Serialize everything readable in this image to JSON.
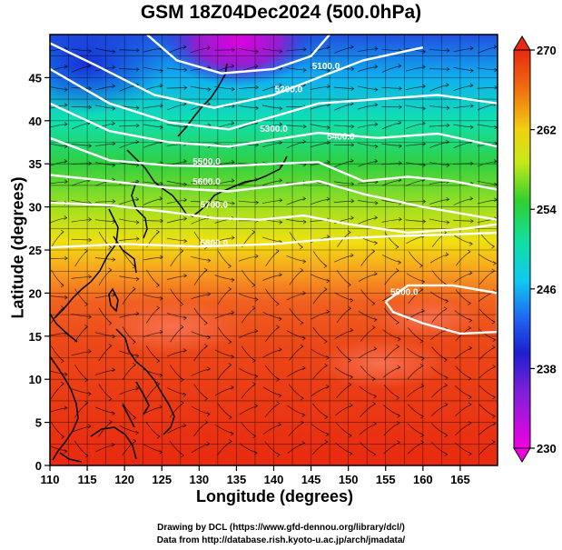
{
  "title": "GSM 18Z04Dec2024 (500.0hPa)",
  "xlabel": "Longitude (degrees)",
  "ylabel": "Latitude  (degrees)",
  "credits": {
    "line1": "Drawing by DCL (https://www.gfd-dennou.org/library/dcl/)",
    "line2": "Data from http://database.rish.kyoto-u.ac.jp/arch/jmadata/"
  },
  "chart_data": {
    "type": "heatmap",
    "variable": "temperature",
    "xlim": [
      110,
      170
    ],
    "ylim": [
      0,
      50
    ],
    "x_ticks": [
      "110",
      "115",
      "120",
      "125",
      "130",
      "135",
      "140",
      "145",
      "150",
      "155",
      "160",
      "165"
    ],
    "y_ticks": [
      "0",
      "5",
      "10",
      "15",
      "20",
      "25",
      "30",
      "35",
      "40",
      "45"
    ],
    "grid": true,
    "colorbar": {
      "min": 230,
      "max": 270,
      "ticks": [
        "230",
        "238",
        "246",
        "254",
        "262",
        "270"
      ],
      "colors": [
        "#e800e8",
        "#2020d8",
        "#10c8f0",
        "#20d040",
        "#e8e800",
        "#f08010",
        "#e83010"
      ]
    },
    "contour_labels": [
      "5100.0",
      "5200.0",
      "5300.0",
      "5400.0",
      "5500.0",
      "5600.0",
      "5700.0",
      "5800.0",
      "5900.0"
    ],
    "contour_lines": [
      {
        "level": "5100.0",
        "points": [
          [
            123,
            50
          ],
          [
            127,
            47
          ],
          [
            133,
            45.5
          ],
          [
            140,
            46
          ],
          [
            145,
            47.5
          ],
          [
            147.5,
            50
          ]
        ]
      },
      {
        "level": "5200.0",
        "points": [
          [
            110,
            49
          ],
          [
            116,
            46.5
          ],
          [
            124,
            43
          ],
          [
            132,
            41.5
          ],
          [
            140,
            43
          ],
          [
            146,
            45
          ],
          [
            152,
            47
          ],
          [
            160,
            48.5
          ]
        ]
      },
      {
        "level": "5300.0",
        "points": [
          [
            110,
            46
          ],
          [
            118,
            42
          ],
          [
            126,
            39.8
          ],
          [
            134,
            39
          ],
          [
            140,
            40.5
          ],
          [
            146,
            42
          ],
          [
            154,
            42.5
          ],
          [
            162,
            43
          ],
          [
            170,
            42
          ]
        ]
      },
      {
        "level": "5400.0",
        "points": [
          [
            110,
            42
          ],
          [
            118,
            38.8
          ],
          [
            126,
            37.5
          ],
          [
            134,
            37
          ],
          [
            140,
            37.8
          ],
          [
            146,
            38.6
          ],
          [
            154,
            38
          ],
          [
            162,
            38.5
          ],
          [
            170,
            37
          ]
        ]
      },
      {
        "level": "5500.0",
        "points": [
          [
            110,
            38
          ],
          [
            118,
            35.4
          ],
          [
            126,
            34.8
          ],
          [
            133,
            34.7
          ],
          [
            140,
            35
          ],
          [
            146,
            35.2
          ],
          [
            152,
            33
          ],
          [
            158,
            33.5
          ],
          [
            164,
            33
          ],
          [
            170,
            32
          ]
        ]
      },
      {
        "level": "5600.0",
        "points": [
          [
            110,
            33.7
          ],
          [
            118,
            33
          ],
          [
            126,
            32.2
          ],
          [
            134,
            31.8
          ],
          [
            140,
            32.4
          ],
          [
            146,
            33
          ],
          [
            152,
            31.5
          ],
          [
            160,
            30
          ],
          [
            170,
            28.5
          ]
        ]
      },
      {
        "level": "5700.0",
        "points": [
          [
            110,
            30.5
          ],
          [
            118,
            30.2
          ],
          [
            126,
            29.4
          ],
          [
            132,
            28.7
          ],
          [
            138,
            28.5
          ],
          [
            144,
            29
          ],
          [
            150,
            28
          ],
          [
            158,
            27
          ],
          [
            166,
            27.5
          ],
          [
            170,
            28
          ]
        ]
      },
      {
        "level": "5800.0",
        "points": [
          [
            110,
            25.3
          ],
          [
            120,
            25.7
          ],
          [
            130,
            25.4
          ],
          [
            140,
            25.7
          ],
          [
            148,
            26.3
          ],
          [
            156,
            26.6
          ],
          [
            164,
            26.8
          ],
          [
            170,
            27
          ]
        ]
      },
      {
        "level": "5900.0",
        "points": [
          [
            155,
            19
          ],
          [
            158,
            20.9
          ],
          [
            164,
            20.9
          ],
          [
            170,
            20
          ],
          [
            170,
            15.5
          ],
          [
            165,
            15.3
          ],
          [
            160,
            16.5
          ],
          [
            156,
            17.8
          ],
          [
            155,
            19
          ]
        ]
      }
    ],
    "contour_label_positions": [
      {
        "text": "5100.0",
        "lon": 147,
        "lat": 46
      },
      {
        "text": "5200.0",
        "lon": 142,
        "lat": 43.3
      },
      {
        "text": "5300.0",
        "lon": 140,
        "lat": 38.7
      },
      {
        "text": "5400.0",
        "lon": 149,
        "lat": 37.8
      },
      {
        "text": "5500.0",
        "lon": 131,
        "lat": 34.9
      },
      {
        "text": "5600.0",
        "lon": 131,
        "lat": 32.6
      },
      {
        "text": "5700.0",
        "lon": 132,
        "lat": 29.9
      },
      {
        "text": "5800.0",
        "lon": 132,
        "lat": 25.5
      },
      {
        "text": "5900.0",
        "lon": 157.5,
        "lat": 19.8
      }
    ]
  }
}
